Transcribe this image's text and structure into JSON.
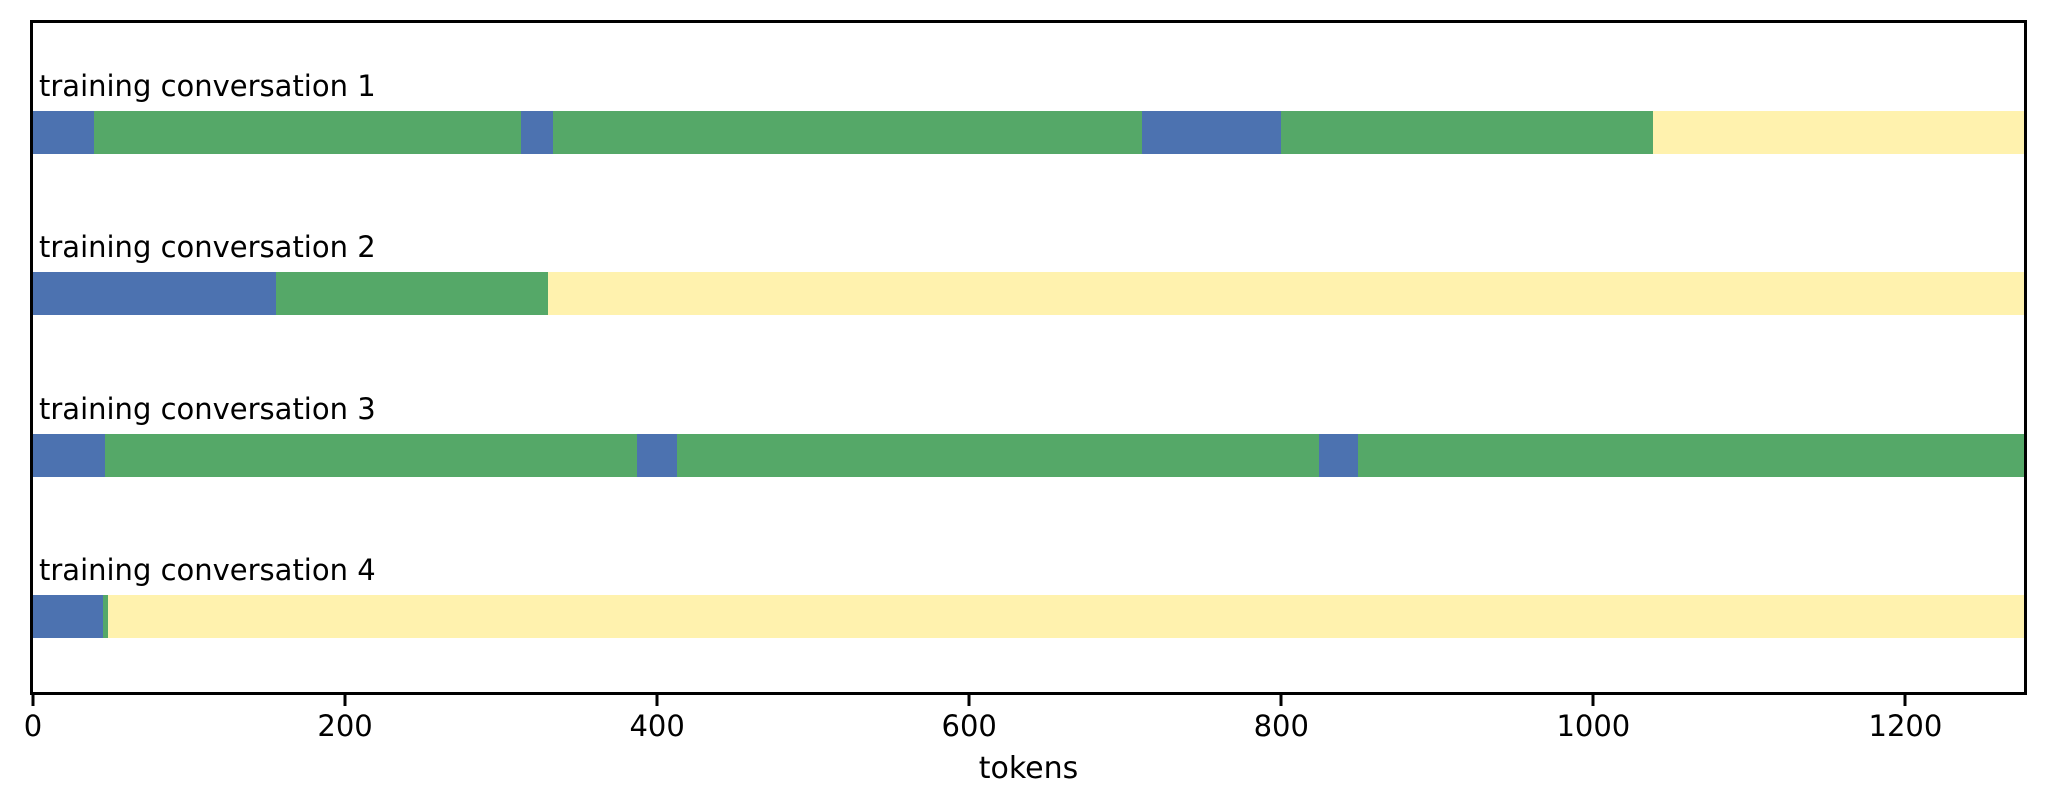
{
  "chart_data": {
    "type": "bar",
    "variant": "horizontal-stacked",
    "title": "",
    "xlabel": "tokens",
    "xlim": [
      0,
      1276
    ],
    "xticks": [
      0,
      200,
      400,
      600,
      800,
      1000,
      1200
    ],
    "grid": false,
    "legend": null,
    "background": "#ffffff",
    "axis_color": "#000000",
    "palette": {
      "blue": "#4C72B0",
      "green": "#55A868",
      "yellow": "#FFF2AE"
    },
    "rows": [
      {
        "label": "training conversation 1",
        "segments": [
          {
            "color": "blue",
            "start": 0,
            "end": 39
          },
          {
            "color": "green",
            "start": 39,
            "end": 313
          },
          {
            "color": "blue",
            "start": 313,
            "end": 333
          },
          {
            "color": "green",
            "start": 333,
            "end": 711
          },
          {
            "color": "blue",
            "start": 711,
            "end": 800
          },
          {
            "color": "green",
            "start": 800,
            "end": 1038
          },
          {
            "color": "yellow",
            "start": 1038,
            "end": 1276
          }
        ]
      },
      {
        "label": "training conversation 2",
        "segments": [
          {
            "color": "blue",
            "start": 0,
            "end": 156
          },
          {
            "color": "green",
            "start": 156,
            "end": 330
          },
          {
            "color": "yellow",
            "start": 330,
            "end": 1276
          }
        ]
      },
      {
        "label": "training conversation 3",
        "segments": [
          {
            "color": "blue",
            "start": 0,
            "end": 46
          },
          {
            "color": "green",
            "start": 46,
            "end": 387
          },
          {
            "color": "blue",
            "start": 387,
            "end": 413
          },
          {
            "color": "green",
            "start": 413,
            "end": 824
          },
          {
            "color": "blue",
            "start": 824,
            "end": 849
          },
          {
            "color": "green",
            "start": 849,
            "end": 1276
          }
        ]
      },
      {
        "label": "training conversation 4",
        "segments": [
          {
            "color": "blue",
            "start": 0,
            "end": 45
          },
          {
            "color": "green",
            "start": 45,
            "end": 48
          },
          {
            "color": "yellow",
            "start": 48,
            "end": 1276
          }
        ]
      }
    ]
  }
}
